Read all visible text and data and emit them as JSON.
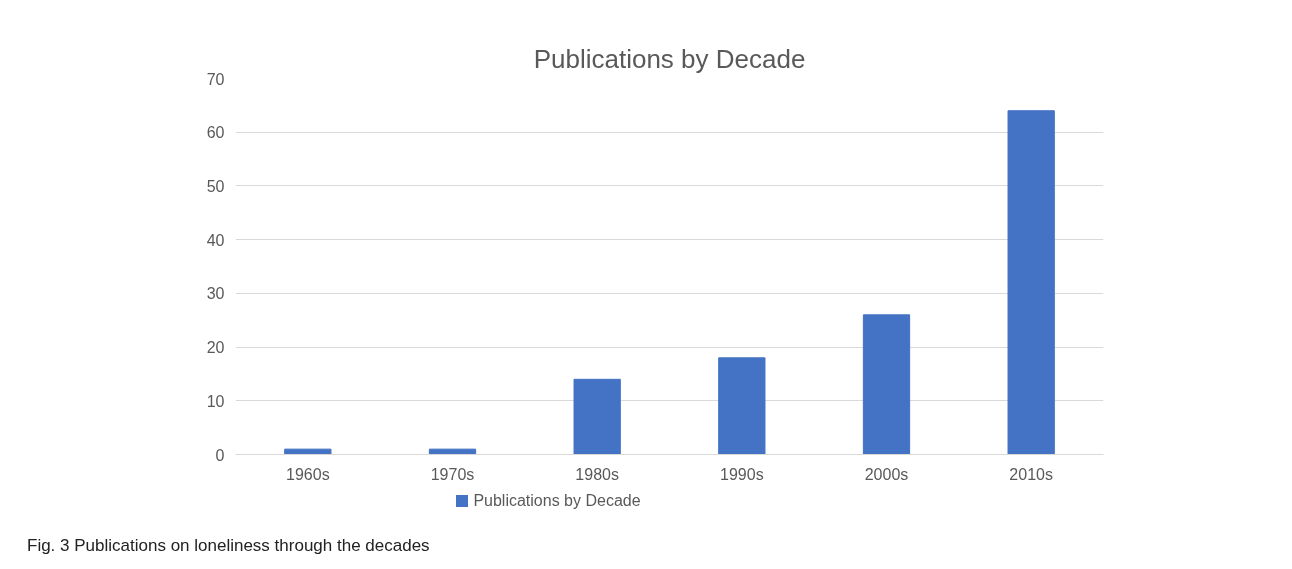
{
  "chart_data": {
    "type": "bar",
    "title": "Publications by Decade",
    "categories": [
      "1960s",
      "1970s",
      "1980s",
      "1990s",
      "2000s",
      "2010s"
    ],
    "series": [
      {
        "name": "Publications by Decade",
        "color": "#4472c4",
        "values": [
          1,
          1,
          14,
          18,
          26,
          64
        ]
      }
    ],
    "ylim": [
      0,
      70
    ],
    "yticks": [
      0,
      10,
      20,
      30,
      40,
      50,
      60,
      70
    ],
    "grid": "y",
    "legend": "bottom",
    "annotations": [
      "Fig. 3  Publications on loneliness through the decades"
    ]
  }
}
